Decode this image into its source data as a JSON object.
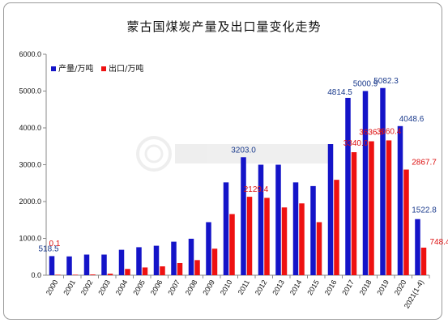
{
  "chart_data": {
    "type": "bar",
    "title": "蒙古国煤炭产量及出口量变化走势",
    "categories": [
      "2000",
      "2001",
      "2002",
      "2003",
      "2004",
      "2005",
      "2006",
      "2007",
      "2008",
      "2009",
      "2010",
      "2011",
      "2012",
      "2013",
      "2014",
      "2015",
      "2016",
      "2017",
      "2018",
      "2019",
      "2020",
      "2021(1-4)"
    ],
    "ylim": [
      0,
      6000
    ],
    "yticks": [
      "0.0",
      "1000.0",
      "2000.0",
      "3000.0",
      "4000.0",
      "5000.0",
      "6000.0"
    ],
    "legend_position": "top-left",
    "grid": false,
    "series": [
      {
        "name": "产量/万吨",
        "color": "#1414c8",
        "values": [
          518.5,
          510,
          560,
          560,
          690,
          760,
          800,
          910,
          990,
          1440,
          2520,
          3203.0,
          3000,
          3000,
          2520,
          2420,
          3560,
          4814.5,
          5000.9,
          5082.3,
          4048.6,
          1522.8
        ],
        "labels": {
          "0": "518.5",
          "11": "3203.0",
          "17": "4814.5",
          "18": "5000.9",
          "19": "5082.3",
          "20": "4048.6",
          "21": "1522.8"
        },
        "label_color": "#1a3a8c"
      },
      {
        "name": "出口/万吨",
        "color": "#ee1111",
        "values": [
          0.1,
          10,
          20,
          40,
          170,
          210,
          240,
          330,
          410,
          720,
          1660,
          2129.4,
          2100,
          1840,
          1950,
          1440,
          2590,
          3340.0,
          3636.5,
          3660.4,
          2867.7,
          748.4
        ],
        "labels": {
          "0": "0.1",
          "11": "2129.4",
          "17": "3340.0",
          "18": "3636.5",
          "19": "3660.4",
          "20": "2867.7",
          "21": "748.4"
        },
        "label_color": "#dd1111"
      }
    ]
  }
}
